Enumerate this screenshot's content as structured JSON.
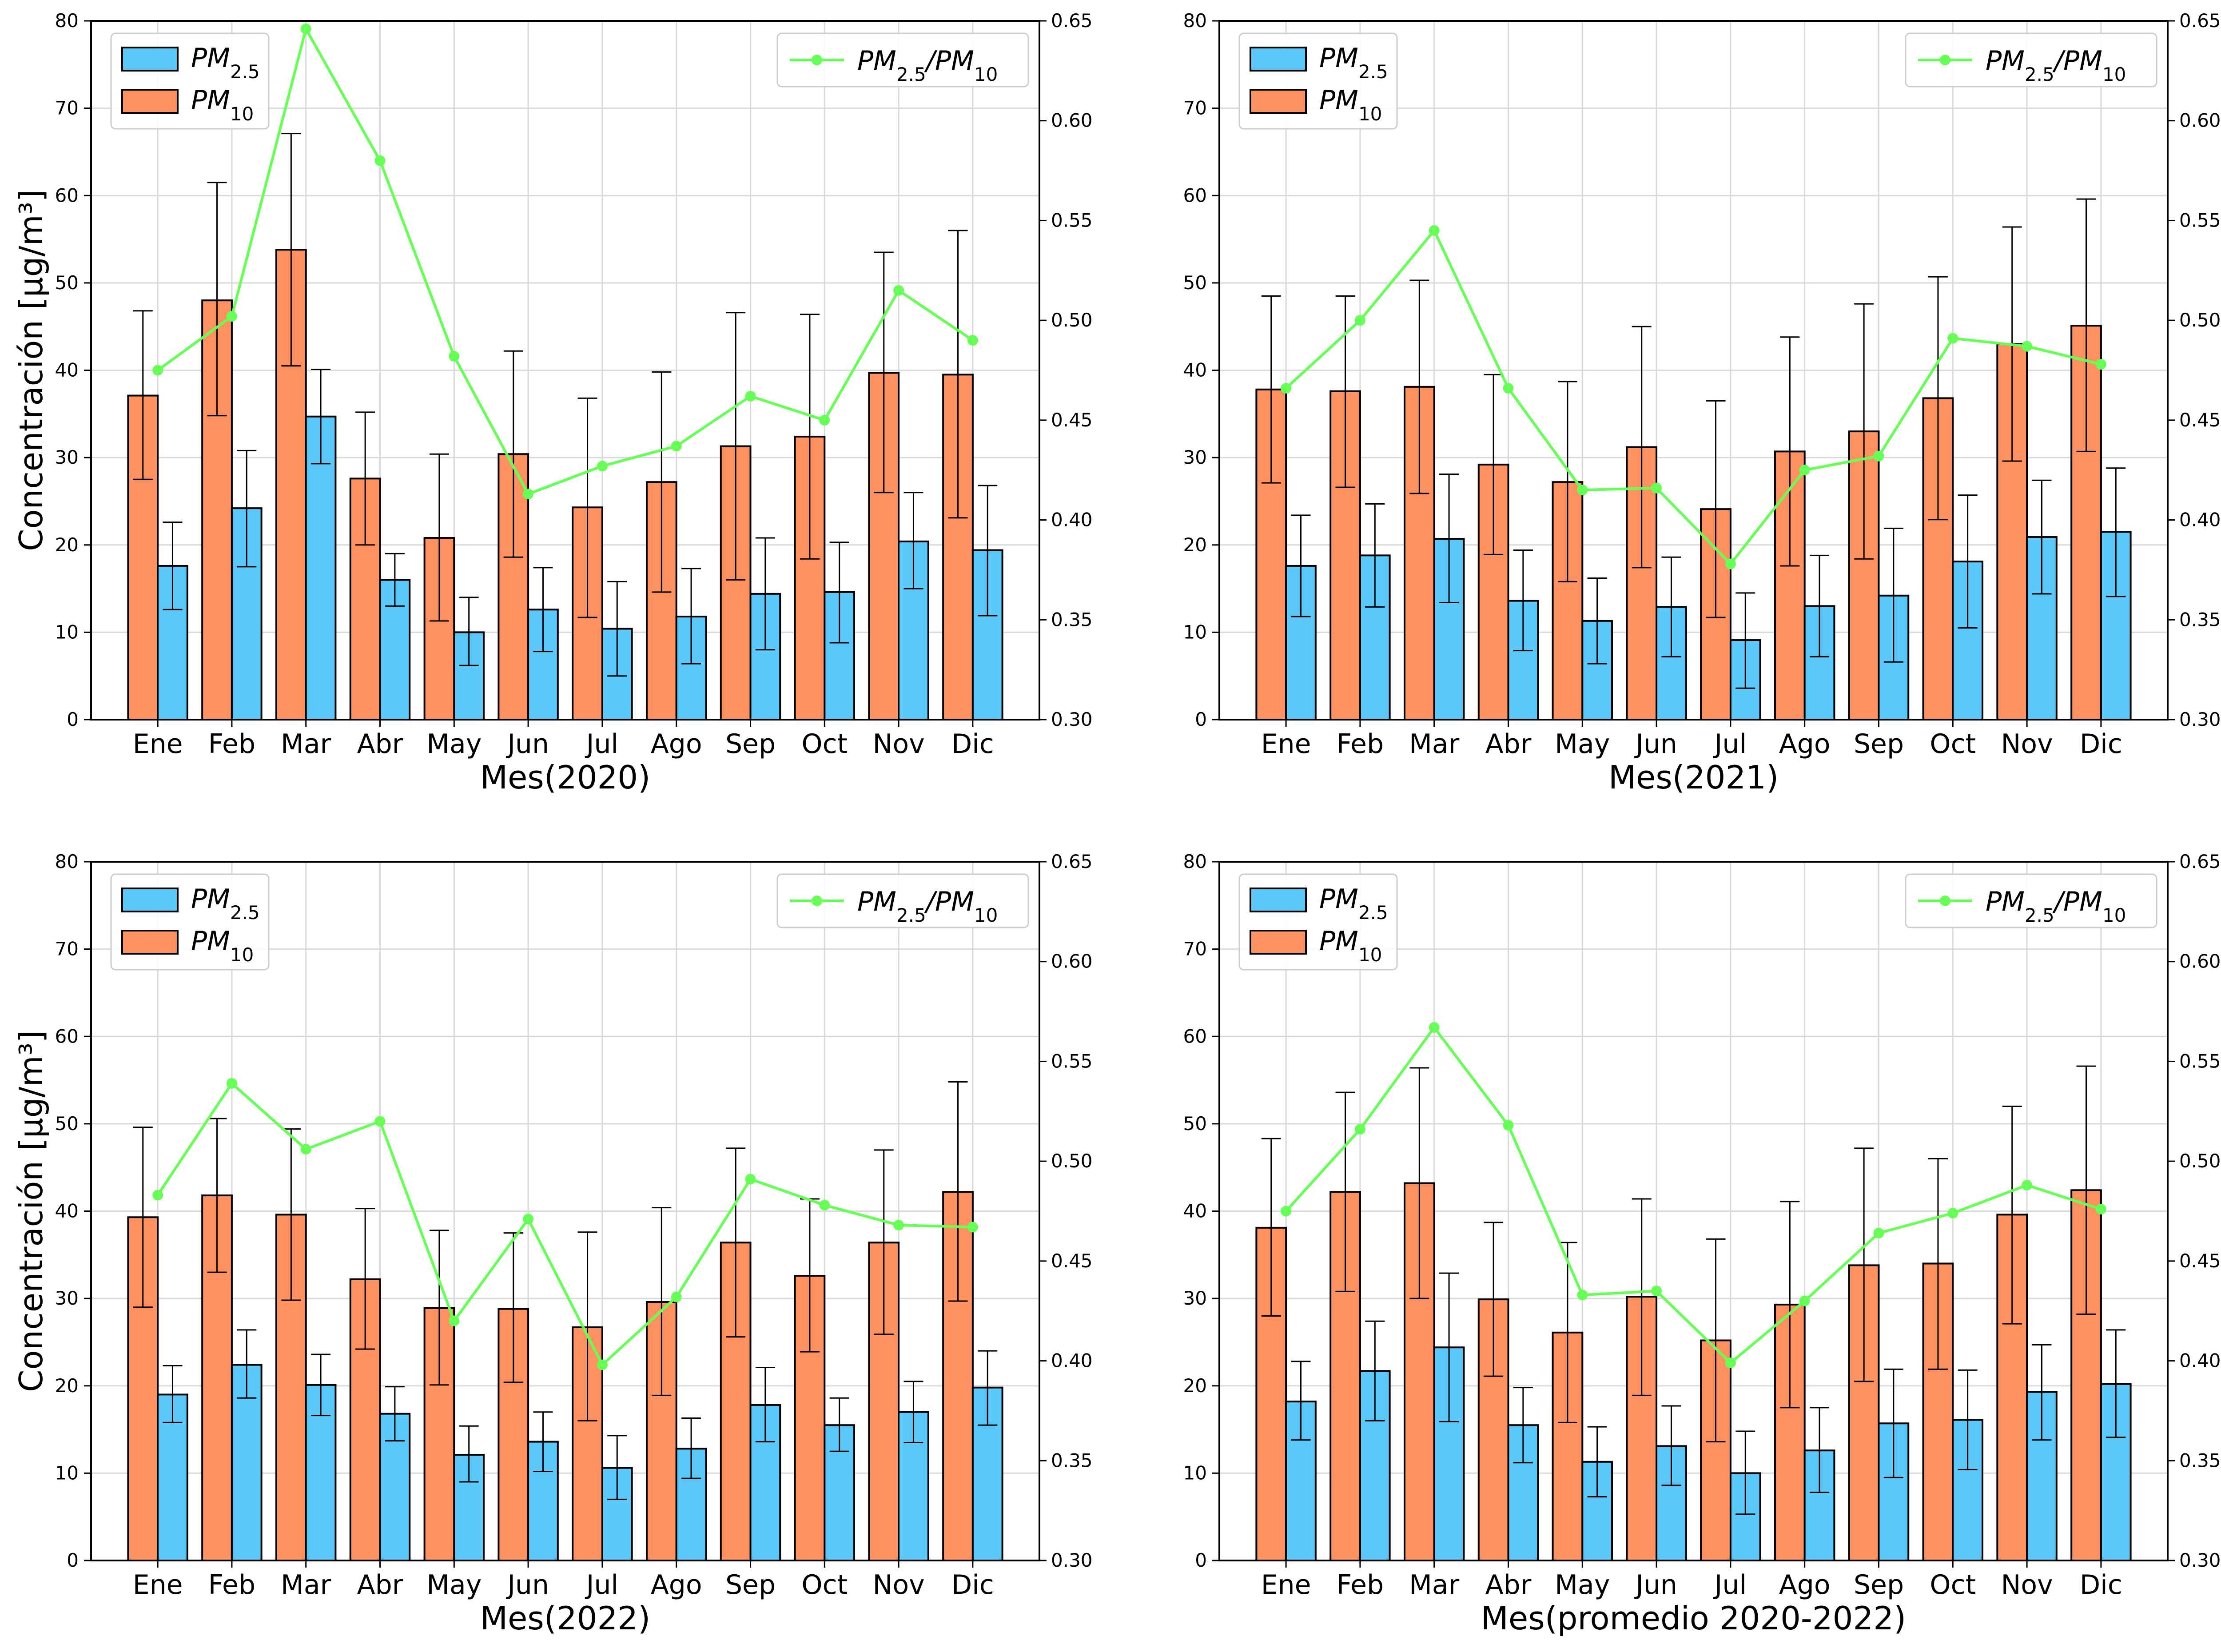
{
  "colors": {
    "pm25": "#5bc8fa",
    "pm10": "#ff9161",
    "ratio": "#66ff55",
    "grid": "#d9d9d9",
    "axis": "#000000"
  },
  "chart_data": [
    {
      "type": "bar",
      "categories": [
        "Ene",
        "Feb",
        "Mar",
        "Abr",
        "May",
        "Jun",
        "Jul",
        "Ago",
        "Sep",
        "Oct",
        "Nov",
        "Dic"
      ],
      "xlabel": "Mes(2020)",
      "ylabel": "Concentración [μg/m³]",
      "y2label": "",
      "ylim": [
        0,
        80
      ],
      "y2lim": [
        0.3,
        0.65
      ],
      "yticks": [
        "0",
        "10",
        "20",
        "30",
        "40",
        "50",
        "60",
        "70",
        "80"
      ],
      "y2ticks": [
        "0.30",
        "0.35",
        "0.40",
        "0.45",
        "0.50",
        "0.55",
        "0.60",
        "0.65"
      ],
      "grid": true,
      "legend_left": [
        "PM2.5",
        "PM10"
      ],
      "legend_right": "PM2.5/PM10",
      "series": [
        {
          "name": "PM10",
          "values": [
            37.1,
            48.0,
            53.8,
            27.6,
            20.8,
            30.4,
            24.3,
            27.2,
            31.3,
            32.4,
            39.7,
            39.5
          ],
          "err_low": [
            27.5,
            34.8,
            40.5,
            20.0,
            11.3,
            18.6,
            11.7,
            14.6,
            16.0,
            18.4,
            26.0,
            23.1
          ],
          "err_high": [
            46.8,
            61.5,
            67.1,
            35.2,
            30.4,
            42.2,
            36.8,
            39.8,
            46.6,
            46.4,
            53.5,
            56.0
          ]
        },
        {
          "name": "PM2.5",
          "values": [
            17.6,
            24.2,
            34.7,
            16.0,
            10.0,
            12.6,
            10.4,
            11.8,
            14.4,
            14.6,
            20.4,
            19.4
          ],
          "err_low": [
            12.6,
            17.5,
            29.3,
            13.0,
            6.2,
            7.8,
            5.0,
            6.4,
            8.0,
            8.8,
            15.0,
            11.9
          ],
          "err_high": [
            22.6,
            30.8,
            40.1,
            19.0,
            14.0,
            17.4,
            15.8,
            17.3,
            20.8,
            20.3,
            26.0,
            26.8
          ]
        },
        {
          "name": "PM2.5/PM10",
          "axis": "right",
          "values": [
            0.475,
            0.502,
            0.646,
            0.58,
            0.482,
            0.413,
            0.427,
            0.437,
            0.462,
            0.45,
            0.515,
            0.49
          ]
        }
      ]
    },
    {
      "type": "bar",
      "categories": [
        "Ene",
        "Feb",
        "Mar",
        "Abr",
        "May",
        "Jun",
        "Jul",
        "Ago",
        "Sep",
        "Oct",
        "Nov",
        "Dic"
      ],
      "xlabel": "Mes(2021)",
      "ylabel": "",
      "y2label": "PM2.5/PM10",
      "ylim": [
        0,
        80
      ],
      "y2lim": [
        0.3,
        0.65
      ],
      "yticks": [
        "0",
        "10",
        "20",
        "30",
        "40",
        "50",
        "60",
        "70",
        "80"
      ],
      "y2ticks": [
        "0.30",
        "0.35",
        "0.40",
        "0.45",
        "0.50",
        "0.55",
        "0.60",
        "0.65"
      ],
      "grid": true,
      "legend_left": [
        "PM2.5",
        "PM10"
      ],
      "legend_right": "PM2.5/PM10",
      "series": [
        {
          "name": "PM10",
          "values": [
            37.8,
            37.6,
            38.1,
            29.2,
            27.2,
            31.2,
            24.1,
            30.7,
            33.0,
            36.8,
            43.0,
            45.1
          ],
          "err_low": [
            27.1,
            26.6,
            25.9,
            18.9,
            15.8,
            17.4,
            11.7,
            17.6,
            18.4,
            22.9,
            29.6,
            30.7
          ],
          "err_high": [
            48.5,
            48.5,
            50.3,
            39.5,
            38.7,
            45.0,
            36.5,
            43.8,
            47.6,
            50.7,
            56.4,
            59.6
          ]
        },
        {
          "name": "PM2.5",
          "values": [
            17.6,
            18.8,
            20.7,
            13.6,
            11.3,
            12.9,
            9.1,
            13.0,
            14.2,
            18.1,
            20.9,
            21.5
          ],
          "err_low": [
            11.8,
            12.9,
            13.4,
            7.9,
            6.4,
            7.2,
            3.6,
            7.2,
            6.6,
            10.5,
            14.4,
            14.1
          ],
          "err_high": [
            23.4,
            24.7,
            28.1,
            19.4,
            16.2,
            18.6,
            14.5,
            18.8,
            21.9,
            25.7,
            27.4,
            28.8
          ]
        },
        {
          "name": "PM2.5/PM10",
          "axis": "right",
          "values": [
            0.466,
            0.5,
            0.545,
            0.466,
            0.415,
            0.416,
            0.378,
            0.425,
            0.432,
            0.491,
            0.487,
            0.478
          ]
        }
      ]
    },
    {
      "type": "bar",
      "categories": [
        "Ene",
        "Feb",
        "Mar",
        "Abr",
        "May",
        "Jun",
        "Jul",
        "Ago",
        "Sep",
        "Oct",
        "Nov",
        "Dic"
      ],
      "xlabel": "Mes(2022)",
      "ylabel": "Concentración [μg/m³]",
      "y2label": "",
      "ylim": [
        0,
        80
      ],
      "y2lim": [
        0.3,
        0.65
      ],
      "yticks": [
        "0",
        "10",
        "20",
        "30",
        "40",
        "50",
        "60",
        "70",
        "80"
      ],
      "y2ticks": [
        "0.30",
        "0.35",
        "0.40",
        "0.45",
        "0.50",
        "0.55",
        "0.60",
        "0.65"
      ],
      "grid": true,
      "legend_left": [
        "PM2.5",
        "PM10"
      ],
      "legend_right": "PM2.5/PM10",
      "series": [
        {
          "name": "PM10",
          "values": [
            39.3,
            41.8,
            39.6,
            32.2,
            28.9,
            28.8,
            26.7,
            29.6,
            36.4,
            32.6,
            36.4,
            42.2
          ],
          "err_low": [
            29.0,
            33.0,
            29.8,
            24.2,
            20.1,
            20.4,
            16.0,
            18.9,
            25.6,
            23.9,
            25.9,
            29.7
          ],
          "err_high": [
            49.6,
            50.6,
            49.4,
            40.3,
            37.8,
            37.5,
            37.6,
            40.4,
            47.2,
            41.4,
            47.0,
            54.8
          ]
        },
        {
          "name": "PM2.5",
          "values": [
            19.0,
            22.4,
            20.1,
            16.8,
            12.1,
            13.6,
            10.6,
            12.8,
            17.8,
            15.5,
            17.0,
            19.8
          ],
          "err_low": [
            15.8,
            18.6,
            16.6,
            13.7,
            9.0,
            10.2,
            7.0,
            9.4,
            13.6,
            12.5,
            13.5,
            15.5
          ],
          "err_high": [
            22.3,
            26.4,
            23.6,
            19.9,
            15.4,
            17.0,
            14.3,
            16.3,
            22.1,
            18.6,
            20.5,
            24.0
          ]
        },
        {
          "name": "PM2.5/PM10",
          "axis": "right",
          "values": [
            0.483,
            0.539,
            0.506,
            0.52,
            0.42,
            0.471,
            0.398,
            0.432,
            0.491,
            0.478,
            0.468,
            0.467
          ]
        }
      ]
    },
    {
      "type": "bar",
      "categories": [
        "Ene",
        "Feb",
        "Mar",
        "Abr",
        "May",
        "Jun",
        "Jul",
        "Ago",
        "Sep",
        "Oct",
        "Nov",
        "Dic"
      ],
      "xlabel": "Mes(promedio 2020-2022)",
      "ylabel": "",
      "y2label": "PM2.5/PM10",
      "ylim": [
        0,
        80
      ],
      "y2lim": [
        0.3,
        0.65
      ],
      "yticks": [
        "0",
        "10",
        "20",
        "30",
        "40",
        "50",
        "60",
        "70",
        "80"
      ],
      "y2ticks": [
        "0.30",
        "0.35",
        "0.40",
        "0.45",
        "0.50",
        "0.55",
        "0.60",
        "0.65"
      ],
      "grid": true,
      "legend_left": [
        "PM2.5",
        "PM10"
      ],
      "legend_right": "PM2.5/PM10",
      "series": [
        {
          "name": "PM10",
          "values": [
            38.1,
            42.2,
            43.2,
            29.9,
            26.1,
            30.2,
            25.2,
            29.3,
            33.8,
            34.0,
            39.6,
            42.4
          ],
          "err_low": [
            28.0,
            30.8,
            30.0,
            21.1,
            15.8,
            18.9,
            13.6,
            17.5,
            20.5,
            21.9,
            27.1,
            28.2
          ],
          "err_high": [
            48.3,
            53.6,
            56.4,
            38.7,
            36.4,
            41.4,
            36.8,
            41.1,
            47.2,
            46.0,
            52.0,
            56.6
          ]
        },
        {
          "name": "PM2.5",
          "values": [
            18.2,
            21.7,
            24.4,
            15.5,
            11.3,
            13.1,
            10.0,
            12.6,
            15.7,
            16.1,
            19.3,
            20.2
          ],
          "err_low": [
            13.8,
            16.0,
            15.9,
            11.2,
            7.3,
            8.6,
            5.3,
            7.8,
            9.5,
            10.4,
            13.8,
            14.1
          ],
          "err_high": [
            22.8,
            27.4,
            32.9,
            19.8,
            15.3,
            17.7,
            14.8,
            17.5,
            21.9,
            21.8,
            24.7,
            26.4
          ]
        },
        {
          "name": "PM2.5/PM10",
          "axis": "right",
          "values": [
            0.475,
            0.516,
            0.567,
            0.518,
            0.433,
            0.435,
            0.399,
            0.43,
            0.464,
            0.474,
            0.488,
            0.476
          ]
        }
      ]
    }
  ]
}
